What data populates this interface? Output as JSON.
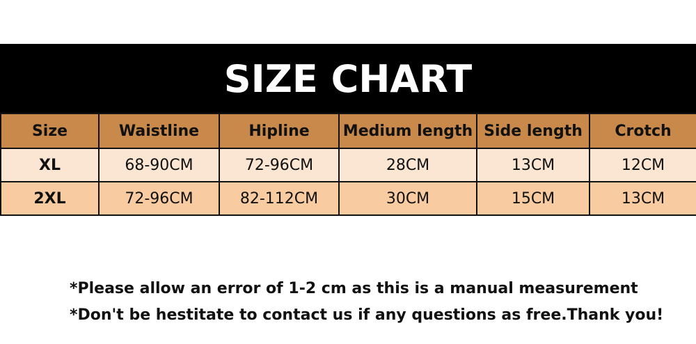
{
  "title": "SIZE CHART",
  "colors": {
    "banner": "#000000",
    "header": "#c8894b",
    "row_odd": "#fae6d2",
    "row_even": "#f8cba0"
  },
  "table": {
    "headers": [
      "Size",
      "Waistline",
      "Hipline",
      "Medium length",
      "Side length",
      "Crotch"
    ],
    "rows": [
      [
        "XL",
        "68-90CM",
        "72-96CM",
        "28CM",
        "13CM",
        "12CM"
      ],
      [
        "2XL",
        "72-96CM",
        "82-112CM",
        "30CM",
        "15CM",
        "13CM"
      ]
    ]
  },
  "notes": [
    "*Please allow an error of 1-2 cm as this is a manual measurement",
    "*Don't be hestitate to contact us if any questions as free.Thank you!"
  ]
}
